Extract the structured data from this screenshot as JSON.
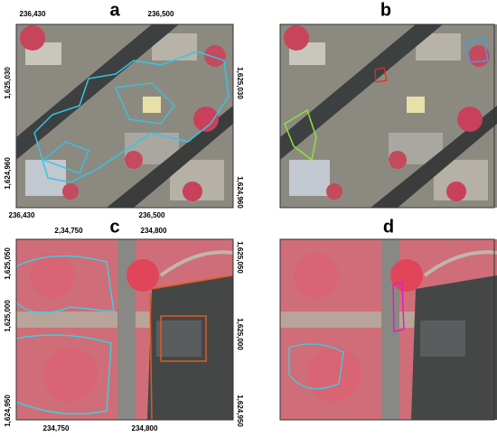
{
  "panels": [
    {
      "label": "a",
      "top_labels": [
        "236,430",
        "236,500"
      ],
      "bottom_labels": [
        "236,430",
        "236,500"
      ],
      "left_labels": [
        "1,625,030",
        "1,624,960"
      ],
      "right_labels": [
        "1,625,030",
        "1,624,960"
      ]
    },
    {
      "label": "b"
    },
    {
      "label": "c",
      "top_labels": [
        "2,34,750",
        "234,800"
      ],
      "bottom_labels": [
        "234,750",
        "234,800"
      ],
      "left_labels": [
        "1,625,050",
        "1,625,000",
        "1,624,950"
      ],
      "right_labels": [
        "1,625,050",
        "1,625,000",
        "1,624,950"
      ]
    },
    {
      "label": "d"
    }
  ]
}
